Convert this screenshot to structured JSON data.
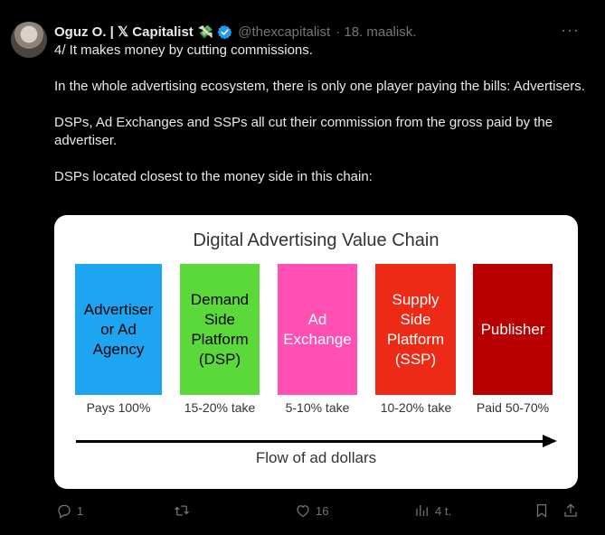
{
  "author": {
    "name": "Oguz O. | 𝕏 Capitalist",
    "emoji": "💸",
    "handle": "@thexcapitalist",
    "date": "· 18. maalisk."
  },
  "tweet": {
    "paragraphs": [
      "4/ It makes money by cutting commissions.",
      "In the whole advertising ecosystem, there is only one player paying the bills: Advertisers.",
      "DSPs, Ad Exchanges and SSPs all cut their commission from the gross paid by the advertiser.",
      "DSPs located closest to the money side in this chain:"
    ]
  },
  "chart": {
    "title": "Digital Advertising Value Chain",
    "boxes": [
      {
        "lines": [
          "Advertiser",
          "or Ad",
          "Agency"
        ],
        "color": "#1ea5f2",
        "text_color": "#000000",
        "caption": "Pays 100%"
      },
      {
        "lines": [
          "Demand",
          "Side",
          "Platform",
          "(DSP)"
        ],
        "color": "#5cd93a",
        "text_color": "#000000",
        "caption": "15-20% take"
      },
      {
        "lines": [
          "Ad",
          "Exchange"
        ],
        "color": "#ff4fb3",
        "text_color": "#ffffff",
        "caption": "5-10% take"
      },
      {
        "lines": [
          "Supply",
          "Side",
          "Platform",
          "(SSP)"
        ],
        "color": "#ec2a16",
        "text_color": "#ffffff",
        "caption": "10-20% take"
      },
      {
        "lines": [
          "Publisher"
        ],
        "color": "#b80000",
        "text_color": "#ffffff",
        "caption": "Paid 50-70%"
      }
    ],
    "flow_label": "Flow of ad dollars"
  },
  "actions": {
    "replies": "1",
    "retweets": "",
    "likes": "16",
    "views": "4 t."
  }
}
